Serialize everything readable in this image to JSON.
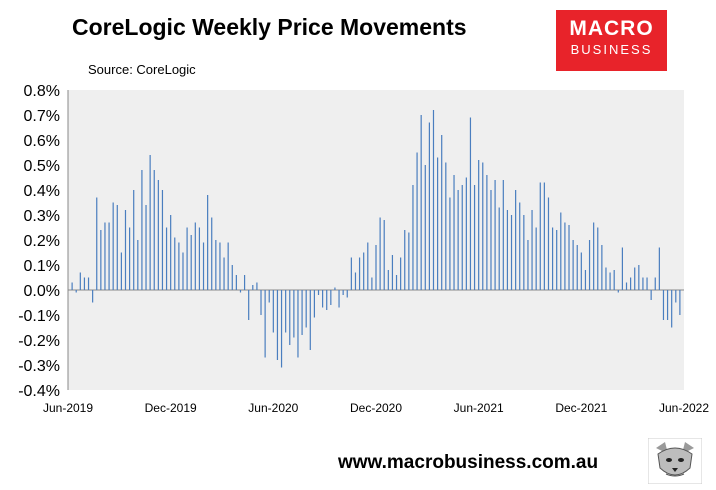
{
  "header": {
    "title": "CoreLogic Weekly Price Movements",
    "source": "Source: CoreLogic"
  },
  "logo": {
    "line1": "MACRO",
    "line2": "BUSINESS",
    "color": "#e8232a"
  },
  "footer": {
    "website": "www.macrobusiness.com.au"
  },
  "colors": {
    "plot_bg": "#efefef",
    "bar": "#4a7ebf",
    "axis": "#888888"
  },
  "chart_data": {
    "type": "bar",
    "x_start": "Jun-2019",
    "x_ticks": [
      "Jun-2019",
      "Dec-2019",
      "Jun-2020",
      "Dec-2020",
      "Jun-2021",
      "Dec-2021",
      "Jun-2022"
    ],
    "ylim": [
      -0.4,
      0.8
    ],
    "yticks": [
      -0.4,
      -0.3,
      -0.2,
      -0.1,
      0.0,
      0.1,
      0.2,
      0.3,
      0.4,
      0.5,
      0.6,
      0.7,
      0.8
    ],
    "ytick_labels": [
      "-0.4%",
      "-0.3%",
      "-0.2%",
      "-0.1%",
      "0.0%",
      "0.1%",
      "0.2%",
      "0.3%",
      "0.4%",
      "0.5%",
      "0.6%",
      "0.7%",
      "0.8%"
    ],
    "grid": false,
    "series": [
      {
        "values": [
          0.03,
          -0.01,
          0.07,
          0.05,
          0.05,
          -0.05,
          0.37,
          0.24,
          0.27,
          0.27,
          0.35,
          0.34,
          0.15,
          0.32,
          0.25,
          0.4,
          0.2,
          0.48,
          0.34,
          0.54,
          0.48,
          0.44,
          0.4,
          0.25,
          0.3,
          0.21,
          0.19,
          0.15,
          0.25,
          0.22,
          0.27,
          0.25,
          0.19,
          0.38,
          0.29,
          0.2,
          0.19,
          0.13,
          0.19,
          0.1,
          0.06,
          -0.01,
          0.06,
          -0.12,
          0.02,
          0.03,
          -0.1,
          -0.27,
          -0.05,
          -0.17,
          -0.28,
          -0.31,
          -0.17,
          -0.22,
          -0.19,
          -0.27,
          -0.18,
          -0.15,
          -0.24,
          -0.11,
          -0.02,
          -0.07,
          -0.08,
          -0.06,
          0.01,
          -0.07,
          -0.02,
          -0.03,
          0.13,
          0.07,
          0.13,
          0.15,
          0.19,
          0.05,
          0.18,
          0.29,
          0.28,
          0.08,
          0.14,
          0.06,
          0.13,
          0.24,
          0.23,
          0.42,
          0.55,
          0.7,
          0.5,
          0.67,
          0.72,
          0.53,
          0.62,
          0.51,
          0.37,
          0.46,
          0.4,
          0.42,
          0.45,
          0.69,
          0.42,
          0.52,
          0.51,
          0.46,
          0.4,
          0.44,
          0.33,
          0.44,
          0.32,
          0.3,
          0.4,
          0.35,
          0.3,
          0.2,
          0.32,
          0.25,
          0.43,
          0.43,
          0.37,
          0.25,
          0.24,
          0.31,
          0.27,
          0.26,
          0.2,
          0.18,
          0.15,
          0.08,
          0.2,
          0.27,
          0.25,
          0.18,
          0.09,
          0.07,
          0.08,
          -0.01,
          0.17,
          0.03,
          0.05,
          0.09,
          0.1,
          0.05,
          0.05,
          -0.04,
          0.05,
          0.17,
          -0.12,
          -0.12,
          -0.15,
          -0.05,
          -0.1
        ]
      }
    ]
  }
}
